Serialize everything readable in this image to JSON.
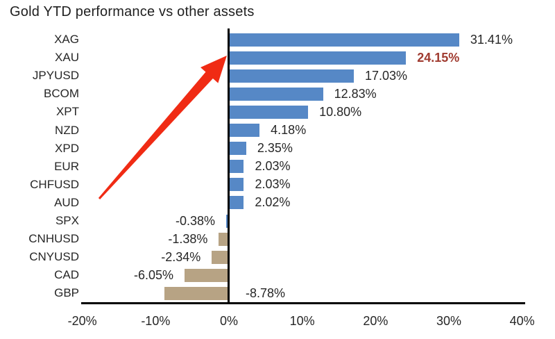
{
  "title": "Gold YTD performance vs other assets",
  "chart_data": {
    "type": "bar",
    "orientation": "horizontal",
    "title": "Gold YTD performance vs other assets",
    "categories": [
      "XAG",
      "XAU",
      "JPYUSD",
      "BCOM",
      "XPT",
      "NZD",
      "XPD",
      "EUR",
      "CHFUSD",
      "AUD",
      "SPX",
      "CNHUSD",
      "CNYUSD",
      "CAD",
      "GBP"
    ],
    "values": [
      31.41,
      24.15,
      17.03,
      12.83,
      10.8,
      4.18,
      2.35,
      2.03,
      2.03,
      2.02,
      -0.38,
      -1.38,
      -2.34,
      -6.05,
      -8.78
    ],
    "value_labels": [
      "31.41%",
      "24.15%",
      "17.03%",
      "12.83%",
      "10.80%",
      "4.18%",
      "2.35%",
      "2.03%",
      "2.03%",
      "2.02%",
      "-0.38%",
      "-1.38%",
      "-2.34%",
      "-6.05%",
      "-8.78%"
    ],
    "bar_colors": [
      "#5688C6",
      "#5688C6",
      "#5688C6",
      "#5688C6",
      "#5688C6",
      "#5688C6",
      "#5688C6",
      "#5688C6",
      "#5688C6",
      "#5688C6",
      "#5688C6",
      "#B7A384",
      "#B7A384",
      "#B7A384",
      "#B7A384"
    ],
    "xlim": [
      -20,
      40
    ],
    "x_ticks": [
      {
        "label": "-20%",
        "value": -20
      },
      {
        "label": "-10%",
        "value": -10
      },
      {
        "label": "0%",
        "value": 0
      },
      {
        "label": "10%",
        "value": 10
      },
      {
        "label": "20%",
        "value": 20
      },
      {
        "label": "30%",
        "value": 30
      },
      {
        "label": "40%",
        "value": 40
      }
    ],
    "grid": false,
    "legend": "none",
    "highlight": {
      "category": "XAU",
      "value_label": "24.15%",
      "label_color": "#A03B30",
      "bold": true
    },
    "label_side_overrides": {
      "GBP": "right-of-axis"
    },
    "colors": {
      "positive_bar": "#5688C6",
      "negative_bar": "#B7A384",
      "axis": "#000000",
      "text": "#262626",
      "arrow": "#F02B14"
    },
    "annotations": [
      {
        "type": "arrow",
        "color": "#F02B14",
        "description": "red arrow from lower-left pointing up to XAU bar"
      }
    ]
  }
}
